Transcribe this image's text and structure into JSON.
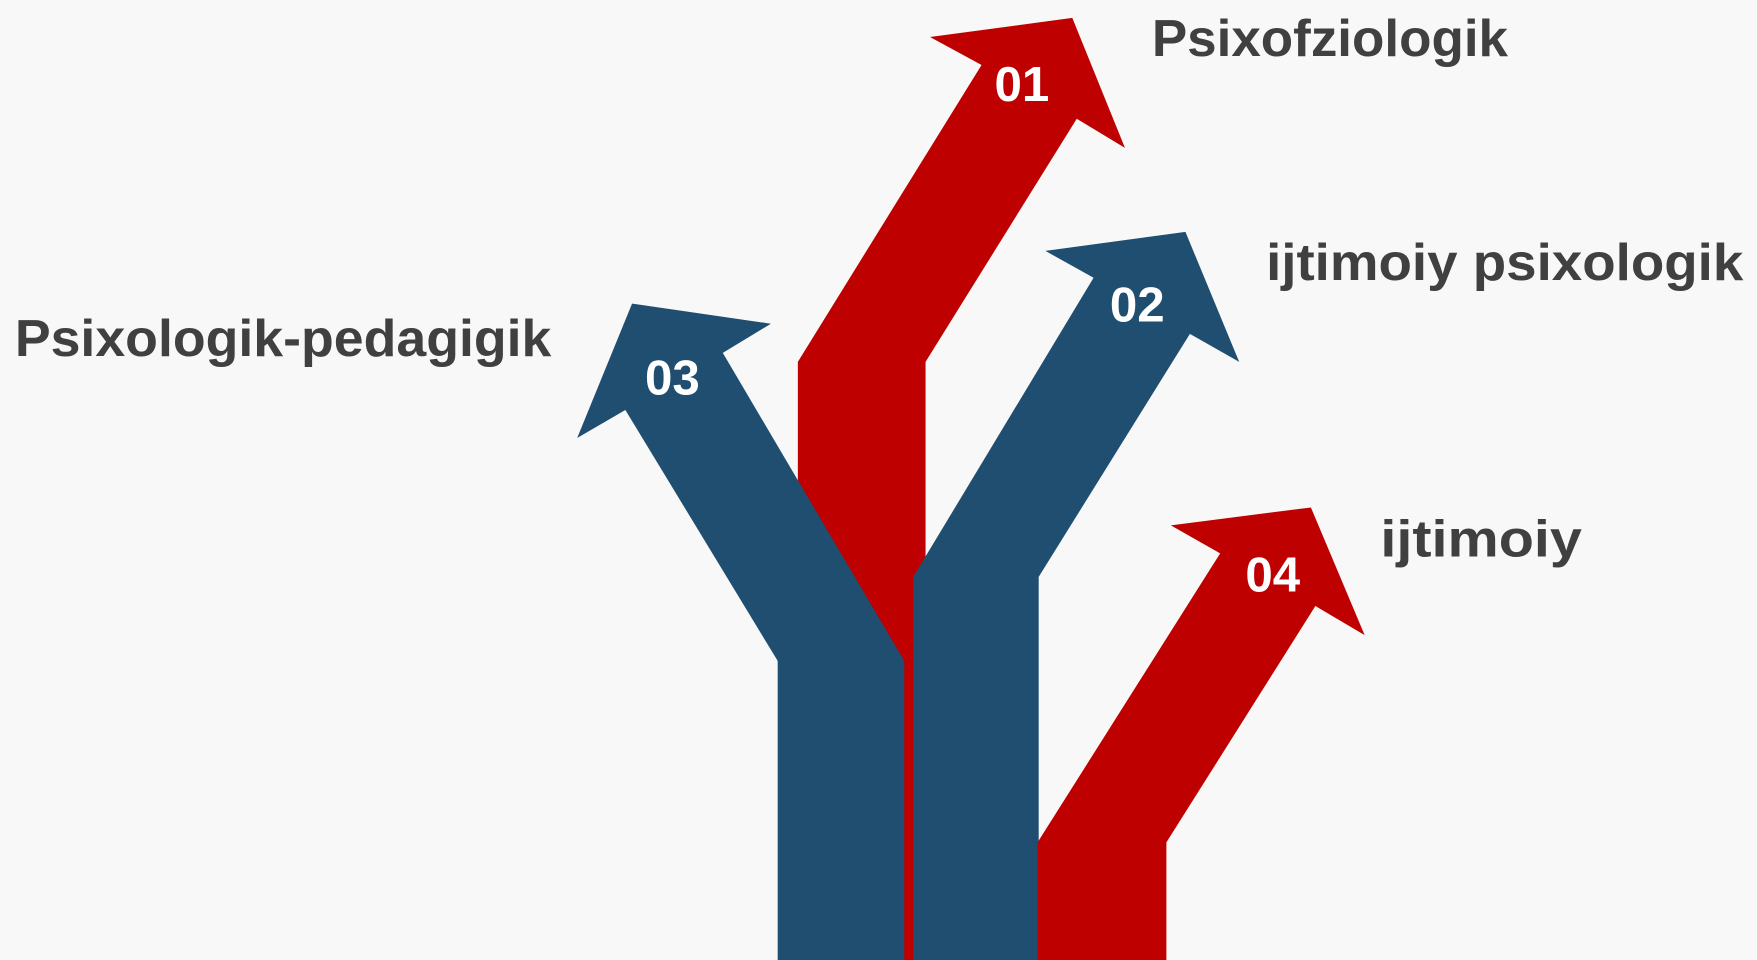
{
  "items": [
    {
      "number": "01",
      "label": "Psixofziologik"
    },
    {
      "number": "02",
      "label": "ijtimoiy psixologik"
    },
    {
      "number": "03",
      "label": "Psixologik-pedagigik"
    },
    {
      "number": "04",
      "label": "ijtimoiy"
    }
  ]
}
